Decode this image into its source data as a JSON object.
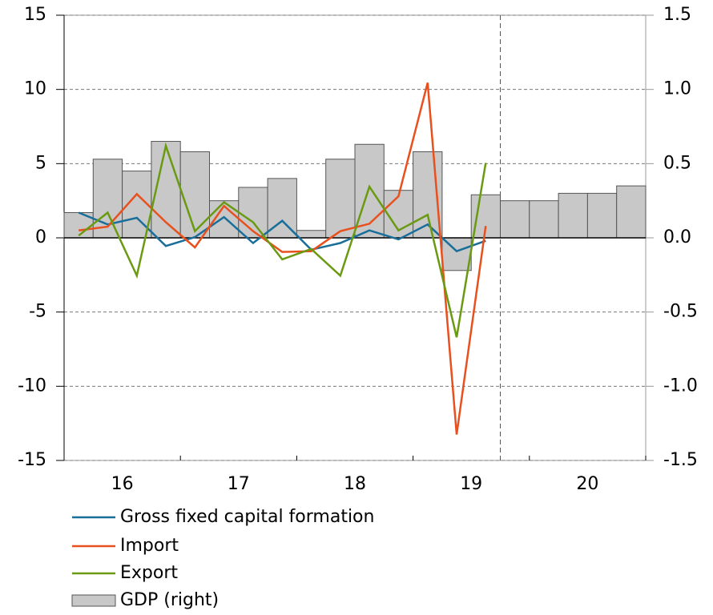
{
  "chart_data": {
    "type": "bar-line",
    "categories": [
      null,
      "16",
      null,
      null,
      null,
      "17",
      null,
      null,
      null,
      "18",
      null,
      null,
      null,
      "19",
      null,
      null,
      null,
      "20",
      null,
      null
    ],
    "ylim": [
      -15,
      15
    ],
    "yticks": [
      -15,
      -10,
      -5,
      0,
      5,
      10,
      15
    ],
    "y2lim": [
      -1.5,
      1.5
    ],
    "y2ticks": [
      -1.5,
      {
        "value": -1.0,
        "label": "-1.0"
      },
      -0.5,
      {
        "value": 0.0,
        "label": "0.0"
      },
      0.5,
      {
        "value": 1.0,
        "label": "1.0"
      },
      1.5
    ],
    "grid": true,
    "series": [
      {
        "name": "Gross fixed capital formation",
        "type": "line",
        "color": "#1a6e9a",
        "values": [
          1.7,
          0.9,
          1.35,
          -0.55,
          0.05,
          1.4,
          -0.35,
          1.15,
          -0.8,
          -0.35,
          0.5,
          -0.1,
          0.9,
          -0.9,
          -0.2,
          null,
          null,
          null,
          null,
          null
        ]
      },
      {
        "name": "Import",
        "type": "line",
        "color": "#e8501e",
        "values": [
          0.5,
          0.75,
          2.95,
          1.05,
          -0.65,
          2.15,
          0.45,
          -0.95,
          -0.9,
          0.45,
          0.95,
          2.8,
          10.45,
          -13.25,
          0.8,
          null,
          null,
          null,
          null,
          null
        ]
      },
      {
        "name": "Export",
        "type": "line",
        "color": "#6a9a12",
        "values": [
          0.15,
          1.7,
          -2.55,
          6.2,
          0.45,
          2.4,
          1.05,
          -1.45,
          -0.75,
          -2.55,
          3.45,
          0.5,
          1.55,
          -6.7,
          5.05,
          null,
          null,
          null,
          null,
          null
        ]
      },
      {
        "name": "GDP (right)",
        "type": "bar",
        "axis": "y2",
        "color": "#c8c8c8",
        "values": [
          0.17,
          0.53,
          0.45,
          0.65,
          0.58,
          0.25,
          0.34,
          0.4,
          0.05,
          0.53,
          0.63,
          0.32,
          0.58,
          -0.22,
          0.29,
          0.25,
          0.25,
          0.3,
          0.3,
          0.35
        ]
      }
    ]
  }
}
